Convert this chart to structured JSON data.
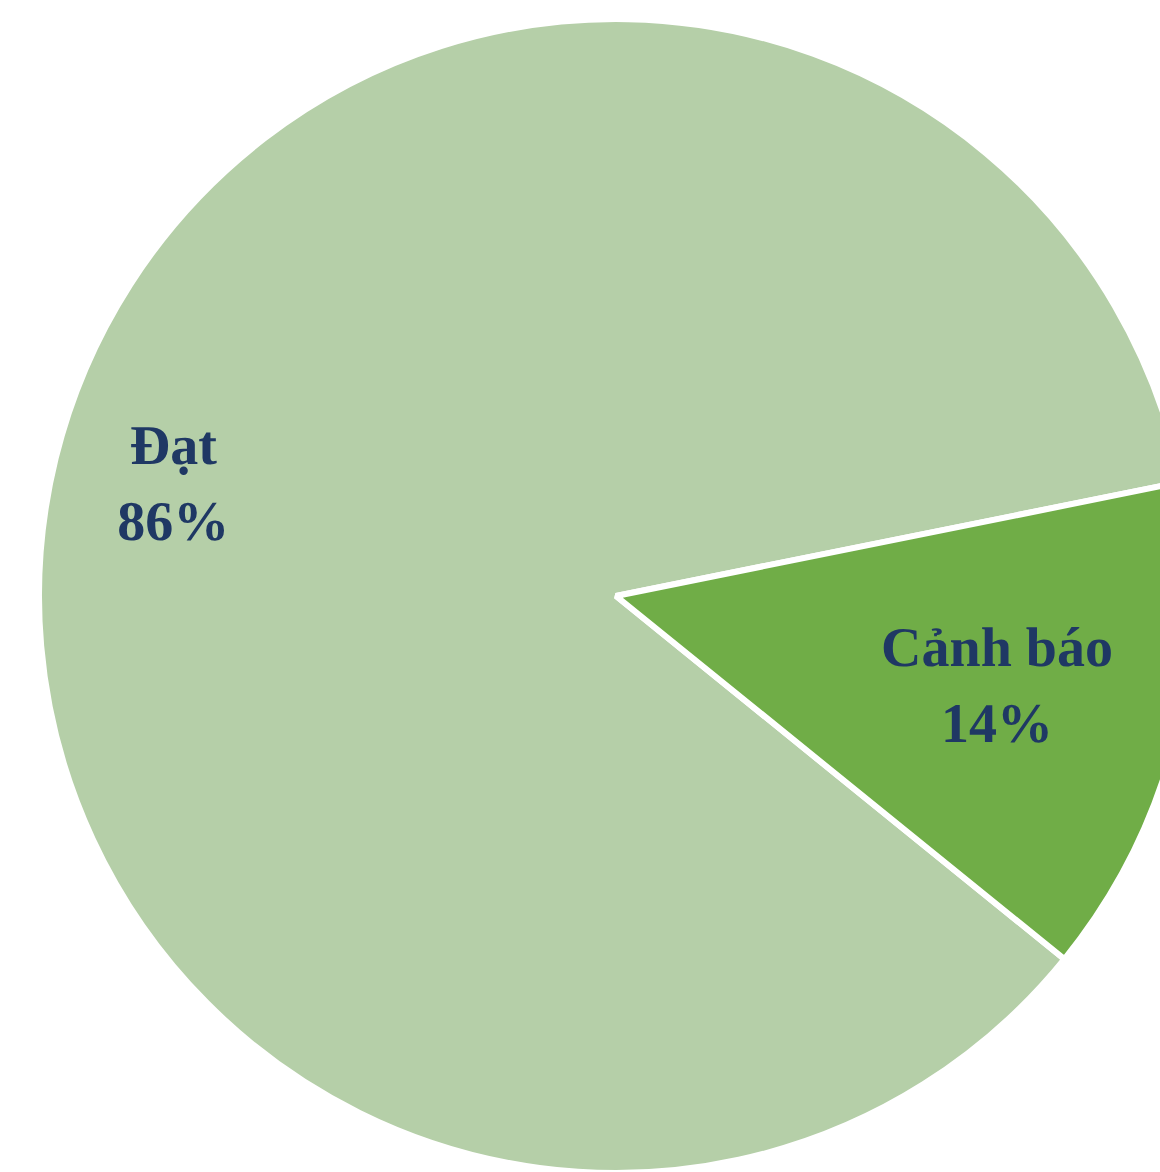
{
  "chart_data": {
    "type": "pie",
    "categories": [
      "Đạt",
      "Cảnh báo"
    ],
    "values": [
      86,
      14
    ],
    "colors": [
      "#b5cfa8",
      "#70ad47"
    ],
    "value_labels": [
      "86%",
      "14%"
    ],
    "legend": false
  }
}
